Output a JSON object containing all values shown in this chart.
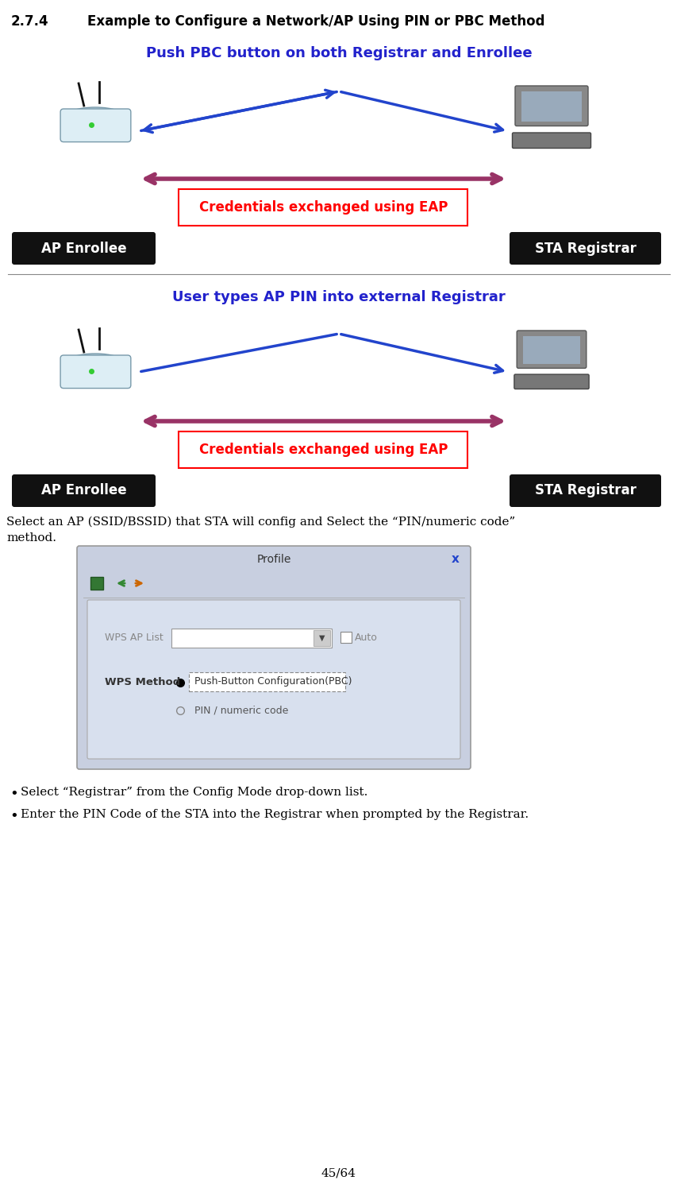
{
  "title_number": "2.7.4",
  "title_text": "Example to Configure a Network/AP Using PIN or PBC Method",
  "diagram1_caption": "Push PBC button on both Registrar and Enrollee",
  "diagram2_caption": "User types AP PIN into external Registrar",
  "credentials_text": "Credentials exchanged using EAP",
  "ap_enrollee_text": "AP Enrollee",
  "sta_registrar_text": "STA Registrar",
  "body_line1": "Select an AP (SSID/BSSID) that STA will config and Select the “PIN/numeric code”",
  "body_line2": "method.",
  "bullet1": "Select “Registrar” from the Config Mode drop-down list.",
  "bullet2": "Enter the PIN Code of the STA into the Registrar when prompted by the Registrar.",
  "profile_title": "Profile",
  "wps_ap_list_label": "WPS AP List",
  "auto_label": "Auto",
  "wps_method_label": "WPS Method",
  "pbc_option": "Push-Button Configuration(PBC)",
  "pin_option": "PIN / numeric code",
  "page_number": "45/64",
  "bg_color": "#ffffff",
  "title_color": "#000000",
  "blue_caption_color": "#2222cc",
  "red_arrow_color": "#993366",
  "blue_arrow_color": "#2244cc",
  "credentials_box_color": "#ff0000",
  "credentials_text_color": "#ff0000",
  "black_badge_bg": "#111111",
  "black_badge_fg": "#ffffff",
  "dialog_bg": "#c8cfe0",
  "dialog_inner_bg": "#d8e0ee",
  "dialog_white": "#ffffff",
  "separator_color": "#888888"
}
